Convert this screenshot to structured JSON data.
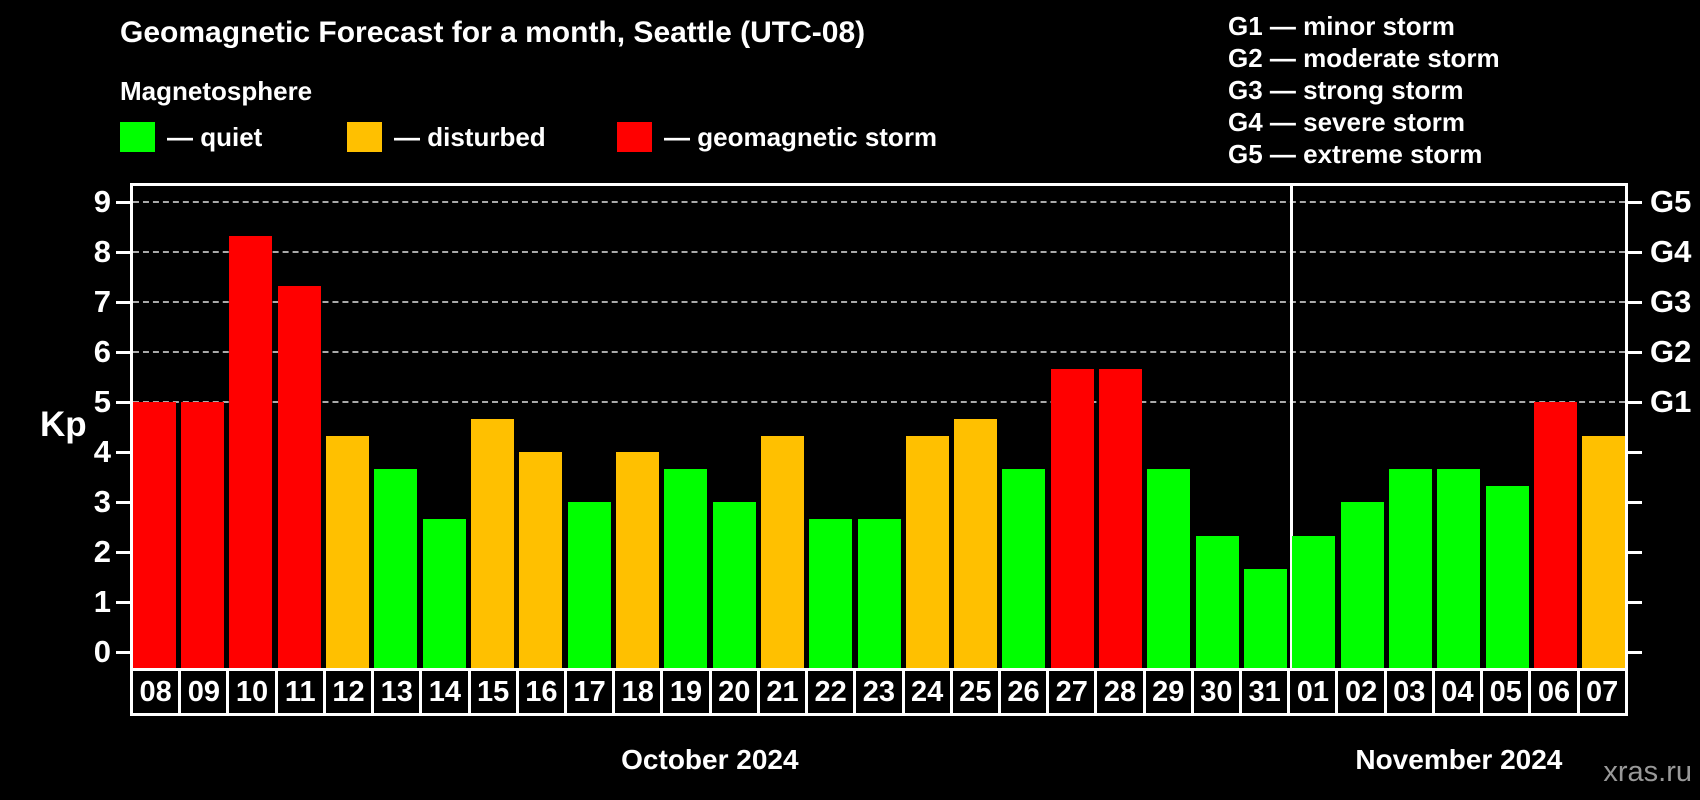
{
  "title": "Geomagnetic Forecast for a month, Seattle (UTC-08)",
  "subtitle": "Magnetosphere",
  "watermark": "xras.ru",
  "colors": {
    "quiet": "#00ff00",
    "disturbed": "#ffc000",
    "storm": "#ff0000",
    "background": "#000000",
    "text": "#ffffff",
    "gridline": "#a9a9a9",
    "watermark": "#999999"
  },
  "legend": {
    "items": [
      {
        "status": "quiet",
        "label": "— quiet",
        "color": "#00ff00"
      },
      {
        "status": "disturbed",
        "label": "— disturbed",
        "color": "#ffc000"
      },
      {
        "status": "storm",
        "label": "— geomagnetic storm",
        "color": "#ff0000"
      }
    ]
  },
  "g_legend": [
    "G1 — minor storm",
    "G2 — moderate storm",
    "G3 — strong storm",
    "G4 — severe storm",
    "G5 — extreme storm"
  ],
  "chart_data": {
    "type": "bar",
    "title": "Geomagnetic Forecast for a month, Seattle (UTC-08)",
    "xlabel": "",
    "ylabel": "Kp",
    "ylim": [
      0,
      9
    ],
    "yticks": [
      0,
      1,
      2,
      3,
      4,
      5,
      6,
      7,
      8,
      9
    ],
    "gridlines_kp": [
      5,
      6,
      7,
      8,
      9
    ],
    "grid": "dashed horizontal at storm levels only",
    "legend_position": "top-left",
    "right_axis_labels": [
      {
        "kp": 5,
        "label": "G1"
      },
      {
        "kp": 6,
        "label": "G2"
      },
      {
        "kp": 7,
        "label": "G3"
      },
      {
        "kp": 8,
        "label": "G4"
      },
      {
        "kp": 9,
        "label": "G5"
      }
    ],
    "categories": [
      "08",
      "09",
      "10",
      "11",
      "12",
      "13",
      "14",
      "15",
      "16",
      "17",
      "18",
      "19",
      "20",
      "21",
      "22",
      "23",
      "24",
      "25",
      "26",
      "27",
      "28",
      "29",
      "30",
      "31",
      "01",
      "02",
      "03",
      "04",
      "05",
      "06",
      "07"
    ],
    "values": [
      5.0,
      5.0,
      8.33,
      7.33,
      4.33,
      3.67,
      2.67,
      4.67,
      4.0,
      3.0,
      4.0,
      3.67,
      3.0,
      4.33,
      2.67,
      2.67,
      4.33,
      4.67,
      3.67,
      5.67,
      5.67,
      3.67,
      2.33,
      1.67,
      2.33,
      3.0,
      3.67,
      3.67,
      3.33,
      5.0,
      4.33
    ],
    "statuses": [
      "storm",
      "storm",
      "storm",
      "storm",
      "disturbed",
      "quiet",
      "quiet",
      "disturbed",
      "disturbed",
      "quiet",
      "disturbed",
      "quiet",
      "quiet",
      "disturbed",
      "quiet",
      "quiet",
      "disturbed",
      "disturbed",
      "quiet",
      "storm",
      "storm",
      "quiet",
      "quiet",
      "quiet",
      "quiet",
      "quiet",
      "quiet",
      "quiet",
      "quiet",
      "storm",
      "disturbed"
    ],
    "months": [
      {
        "label": "October 2024",
        "start_index": 0,
        "count": 24
      },
      {
        "label": "November 2024",
        "start_index": 24,
        "count": 7
      }
    ]
  }
}
